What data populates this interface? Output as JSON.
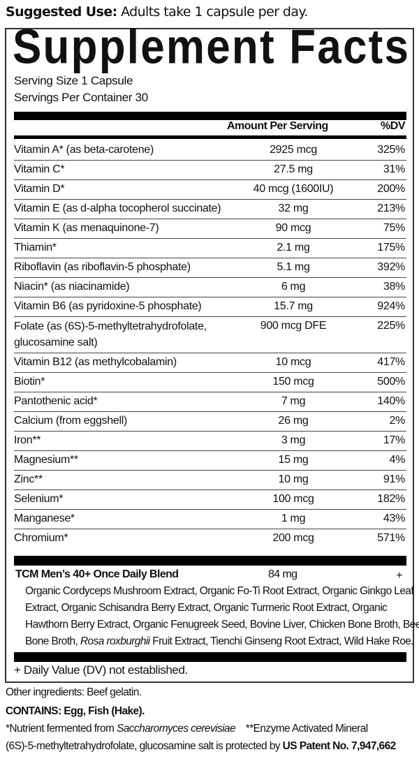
{
  "suggested_use": {
    "label": "Suggested Use:",
    "text": " Adults take 1 capsule per day."
  },
  "title": "Supplement Facts",
  "serving_size": "Serving Size 1 Capsule",
  "servings_per_container": "Servings Per Container 30",
  "headers": {
    "amount": "Amount Per Serving",
    "dv": "%DV"
  },
  "nutrients": [
    {
      "name": "Vitamin A* (as beta-carotene)",
      "amount": "2925 mcg",
      "dv": "325%"
    },
    {
      "name": "Vitamin C*",
      "amount": "27.5 mg",
      "dv": "31%"
    },
    {
      "name": "Vitamin D*",
      "amount": "40 mcg (1600IU)",
      "dv": "200%"
    },
    {
      "name": "Vitamin E (as d-alpha tocopherol succinate)",
      "amount": "32 mg",
      "dv": "213%"
    },
    {
      "name": "Vitamin K (as menaquinone-7)",
      "amount": "90 mcg",
      "dv": "75%"
    },
    {
      "name": "Thiamin*",
      "amount": "2.1 mg",
      "dv": "175%"
    },
    {
      "name": "Riboflavin (as riboflavin-5 phosphate)",
      "amount": "5.1 mg",
      "dv": "392%"
    },
    {
      "name": "Niacin* (as niacinamide)",
      "amount": "6 mg",
      "dv": "38%"
    },
    {
      "name": "Vitamin B6 (as pyridoxine-5 phosphate)",
      "amount": "15.7 mg",
      "dv": "924%"
    },
    {
      "name": "Folate (as (6S)-5-methyltetrahydrofolate,",
      "name2": "glucosamine salt)",
      "amount": "900 mcg DFE",
      "dv": "225%"
    },
    {
      "name": "Vitamin B12 (as methylcobalamin)",
      "amount": "10 mcg",
      "dv": "417%"
    },
    {
      "name": "Biotin*",
      "amount": "150 mcg",
      "dv": "500%"
    },
    {
      "name": "Pantothenic acid*",
      "amount": "7 mg",
      "dv": "140%"
    },
    {
      "name": "Calcium (from eggshell)",
      "amount": "26 mg",
      "dv": "2%"
    },
    {
      "name": "Iron**",
      "amount": "3 mg",
      "dv": "17%"
    },
    {
      "name": "Magnesium**",
      "amount": "15 mg",
      "dv": "4%"
    },
    {
      "name": "Zinc**",
      "amount": "10 mg",
      "dv": "91%"
    },
    {
      "name": "Selenium*",
      "amount": "100 mcg",
      "dv": "182%"
    },
    {
      "name": "Manganese*",
      "amount": "1 mg",
      "dv": "43%"
    },
    {
      "name": "Chromium*",
      "amount": "200 mcg",
      "dv": "571%"
    }
  ],
  "blend": {
    "name": "TCM Men’s 40+ Once Daily Blend",
    "amount": "84 mg",
    "dv": "+",
    "lines": [
      "Organic Cordyceps Mushroom Extract, Organic Fo-Ti Root Extract, Organic Ginkgo Leaf",
      "Extract, Organic Schisandra Berry Extract, Organic Turmeric Root Extract, Organic",
      "Hawthorn Berry Extract, Organic Fenugreek Seed, Bovine Liver, Chicken Bone Broth, Beef"
    ],
    "last_a": "Bone Broth, ",
    "last_italic": "Rosa roxburghii",
    "last_b": " Fruit Extract, Tienchi Ginseng Root Extract, Wild Hake Roe."
  },
  "dv_note": "+ Daily Value (DV) not established.",
  "other_ingredients": "Other ingredients: Beef gelatin.",
  "contains": "CONTAINS: Egg, Fish (Hake).",
  "footnote1": {
    "a": "*Nutrient fermented from ",
    "italic": "Saccharomyces cerevisiae",
    "b": "    **Enzyme Activated Mineral"
  },
  "footnote2": {
    "a": "(6S)-5-methyltetrahydrofolate, glucosamine salt is protected by ",
    "bold": "US Patent No. 7,947,662"
  }
}
